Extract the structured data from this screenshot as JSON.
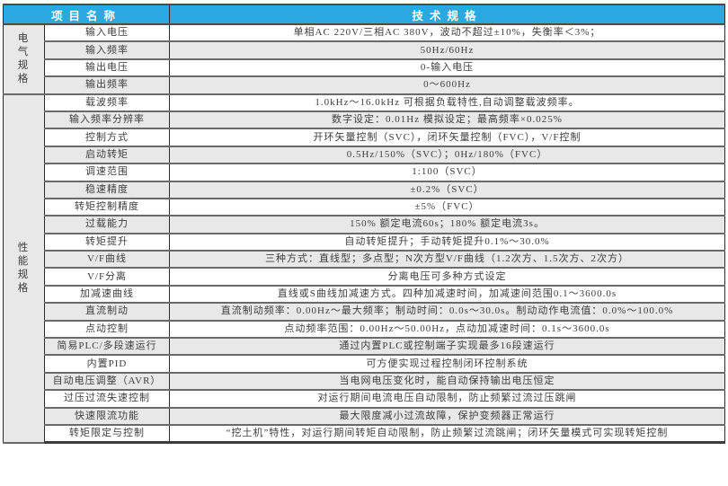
{
  "colors": {
    "header_bg": "#29a9e0",
    "stripe_bg": "#e8e8e8",
    "header_text": "#ffffff",
    "body_text": "#3d3d3d"
  },
  "header": {
    "project_col": "项目名称",
    "spec_col": "技术规格"
  },
  "groups": [
    {
      "label": "电气规格",
      "rows": [
        {
          "name": "输入电压",
          "value": "单相AC 220V/三相AC 380V，波动不超过±10%，失衡率＜3%；",
          "shaded": false
        },
        {
          "name": "输入频率",
          "value": "50Hz/60Hz",
          "shaded": true
        },
        {
          "name": "输出电压",
          "value": "0-输入电压",
          "shaded": false
        },
        {
          "name": "输出频率",
          "value": "0～600Hz",
          "shaded": true
        }
      ]
    },
    {
      "label": "性能规格",
      "rows": [
        {
          "name": "载波频率",
          "value": "1.0kHz～16.0kHz 可根据负载特性,自动调整载波频率。",
          "shaded": false
        },
        {
          "name": "输入频率分辨率",
          "value": "数字设定：0.01Hz 模拟设定；最高频率×0.025%",
          "shaded": true
        },
        {
          "name": "控制方式",
          "value": "开环矢量控制（SVC），闭环矢量控制（FVC），V/F控制",
          "shaded": false
        },
        {
          "name": "启动转矩",
          "value": "0.5Hz/150%（SVC）；0Hz/180%（FVC）",
          "shaded": true
        },
        {
          "name": "调速范围",
          "value": "1:100（SVC）",
          "shaded": false
        },
        {
          "name": "稳速精度",
          "value": "±0.2%（SVC）",
          "shaded": true
        },
        {
          "name": "转矩控制精度",
          "value": "±5%（FVC）",
          "shaded": false
        },
        {
          "name": "过载能力",
          "value": "150% 额定电流60s；180% 额定电流3s。",
          "shaded": true
        },
        {
          "name": "转矩提升",
          "value": "自动转矩提升；手动转矩提升0.1%～30.0%",
          "shaded": false
        },
        {
          "name": "V/F曲线",
          "value": "三种方式：直线型；多点型；N次方型V/F曲线（1.2次方、1.5次方、2次方）",
          "shaded": true
        },
        {
          "name": "V/F分离",
          "value": "分离电压可多种方式设定",
          "shaded": false
        },
        {
          "name": "加减速曲线",
          "value": "直线或S曲线加减速方式。四种加减速时间，加减速间范围0.1～3600.0s",
          "shaded": false
        },
        {
          "name": "直流制动",
          "value": "直流制动频率：0.00Hz～最大频率；制动时间：0.0s～30.0s。制动动作电流值：0.0%～100.0%",
          "shaded": true
        },
        {
          "name": "点动控制",
          "value": "点动频率范围：0.00Hz～50.00Hz，点动加减速时间：0.1s～3600.0s",
          "shaded": false
        },
        {
          "name": "简易PLC/多段速运行",
          "value": "通过内置PLC或控制端子实现最多16段速运行",
          "shaded": true
        },
        {
          "name": "内置PID",
          "value": "可方便实现过程控制闭环控制系统",
          "shaded": false
        },
        {
          "name": "自动电压调整（AVR）",
          "value": "当电网电压变化时，能自动保持输出电压恒定",
          "shaded": true
        },
        {
          "name": "过压过流失速控制",
          "value": "对运行期间电流电压自动限制，防止频繁过流过压跳闸",
          "shaded": false
        },
        {
          "name": "快速限流功能",
          "value": "最大限度减小过流故障，保护变频器正常运行",
          "shaded": true
        },
        {
          "name": "转矩限定与控制",
          "value": "“挖土机”特性，对运行期间转矩自动限制，防止频繁过流跳闸；闭环矢量模式可实现转矩控制",
          "shaded": false
        }
      ]
    }
  ]
}
